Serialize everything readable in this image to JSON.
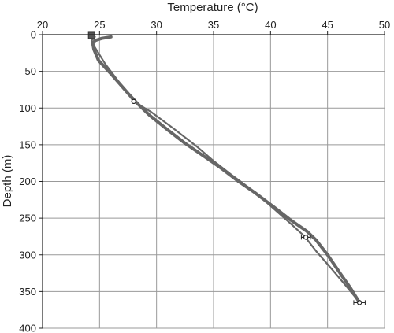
{
  "chart_data": {
    "type": "line",
    "title": "",
    "xlabel": "Temperature (°C)",
    "ylabel": "Depth (m)",
    "x_axis_position": "top",
    "y_axis_inverted": true,
    "xlim": [
      20,
      50
    ],
    "ylim": [
      0,
      400
    ],
    "xticks": [
      20,
      25,
      30,
      35,
      40,
      45,
      50
    ],
    "yticks": [
      0,
      50,
      100,
      150,
      200,
      250,
      300,
      350,
      400
    ],
    "grid": true,
    "legend": "none",
    "colors": {
      "series": "#666666",
      "grid": "#999999",
      "axis": "#222222",
      "marker": "#555555"
    },
    "series": [
      {
        "points": [
          [
            26.0,
            3
          ],
          [
            25.2,
            5
          ],
          [
            24.6,
            8
          ],
          [
            24.4,
            12
          ],
          [
            24.5,
            20
          ],
          [
            24.9,
            35
          ],
          [
            26.1,
            55
          ],
          [
            27.5,
            80
          ],
          [
            28.4,
            95
          ],
          [
            29.4,
            110
          ],
          [
            31.0,
            130
          ],
          [
            32.5,
            148
          ],
          [
            34.1,
            165
          ],
          [
            35.5,
            180
          ],
          [
            37.2,
            200
          ],
          [
            38.6,
            215
          ],
          [
            40.3,
            235
          ],
          [
            41.8,
            253
          ],
          [
            43.2,
            268
          ],
          [
            44.0,
            280
          ],
          [
            45.0,
            300
          ],
          [
            46.1,
            325
          ],
          [
            47.0,
            345
          ],
          [
            47.6,
            360
          ],
          [
            47.8,
            365
          ]
        ]
      },
      {
        "points": [
          [
            24.6,
            3
          ],
          [
            24.3,
            8
          ],
          [
            24.5,
            15
          ],
          [
            25.5,
            40
          ],
          [
            28.0,
            91
          ],
          [
            29.5,
            105
          ],
          [
            31.5,
            128
          ],
          [
            33.5,
            152
          ],
          [
            35.0,
            172
          ],
          [
            36.5,
            190
          ],
          [
            38.5,
            213
          ],
          [
            40.2,
            236
          ],
          [
            41.8,
            258
          ],
          [
            43.0,
            275
          ],
          [
            44.0,
            295
          ],
          [
            45.4,
            320
          ],
          [
            46.5,
            340
          ],
          [
            47.4,
            357
          ],
          [
            47.8,
            365
          ]
        ]
      }
    ],
    "markers": [
      {
        "shape": "square",
        "x": 24.3,
        "y": 1
      },
      {
        "shape": "circle",
        "x": 28.0,
        "y": 91
      },
      {
        "shape": "circle",
        "x": 43.1,
        "y": 276
      },
      {
        "shape": "circle",
        "x": 47.8,
        "y": 365
      }
    ],
    "error_bars": [
      {
        "x": 43.1,
        "y": 276,
        "xmin": 42.7,
        "xmax": 43.5
      },
      {
        "x": 47.8,
        "y": 365,
        "xmin": 47.3,
        "xmax": 48.3
      }
    ]
  }
}
